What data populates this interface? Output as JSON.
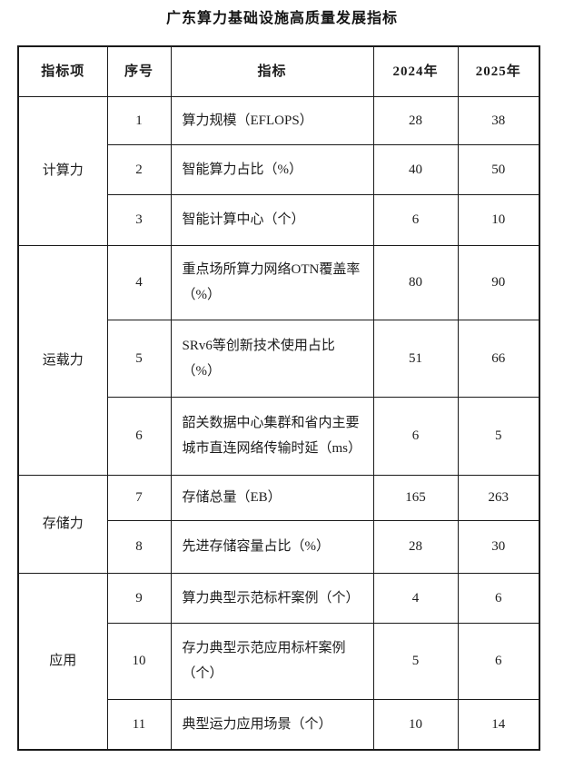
{
  "title": "广东算力基础设施高质量发展指标",
  "table": {
    "headers": [
      "指标项",
      "序号",
      "指标",
      "2024年",
      "2025年"
    ],
    "groups": [
      {
        "category": "计算力",
        "rows": [
          {
            "no": "1",
            "indicator": "算力规模（EFLOPS）",
            "y2024": "28",
            "y2025": "38"
          },
          {
            "no": "2",
            "indicator": "智能算力占比（%）",
            "y2024": "40",
            "y2025": "50"
          },
          {
            "no": "3",
            "indicator": "智能计算中心（个）",
            "y2024": "6",
            "y2025": "10"
          }
        ]
      },
      {
        "category": "运载力",
        "rows": [
          {
            "no": "4",
            "indicator": "重点场所算力网络OTN覆盖率\n（%）",
            "y2024": "80",
            "y2025": "90"
          },
          {
            "no": "5",
            "indicator": "SRv6等创新技术使用占比\n（%）",
            "y2024": "51",
            "y2025": "66"
          },
          {
            "no": "6",
            "indicator": "韶关数据中心集群和省内主要\n城市直连网络传输时延（ms）",
            "y2024": "6",
            "y2025": "5"
          }
        ]
      },
      {
        "category": "存储力",
        "rows": [
          {
            "no": "7",
            "indicator": "存储总量（EB）",
            "y2024": "165",
            "y2025": "263"
          },
          {
            "no": "8",
            "indicator": "先进存储容量占比（%）",
            "y2024": "28",
            "y2025": "30"
          }
        ]
      },
      {
        "category": "应用",
        "rows": [
          {
            "no": "9",
            "indicator": "算力典型示范标杆案例（个）",
            "y2024": "4",
            "y2025": "6"
          },
          {
            "no": "10",
            "indicator": "存力典型示范应用标杆案例\n（个）",
            "y2024": "5",
            "y2025": "6"
          },
          {
            "no": "11",
            "indicator": "典型运力应用场景（个）",
            "y2024": "10",
            "y2025": "14"
          }
        ]
      }
    ]
  }
}
